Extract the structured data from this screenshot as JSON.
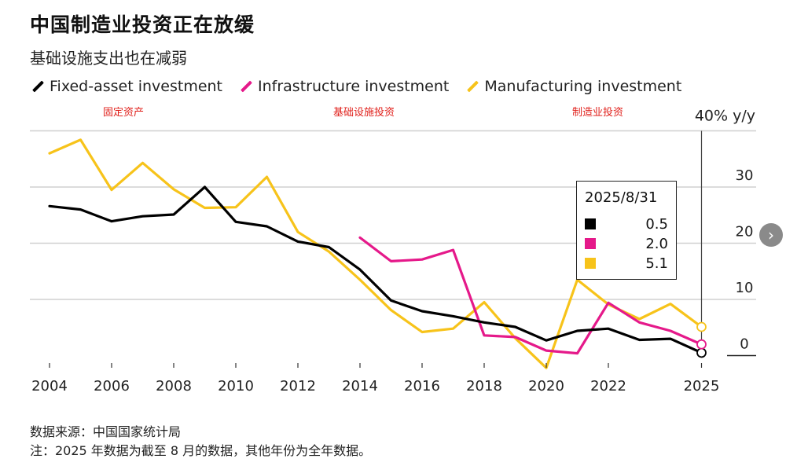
{
  "title": "中国制造业投资正在放缓",
  "subtitle": "基础设施支出也在减弱",
  "legend": [
    {
      "label": "Fixed-asset investment",
      "color": "#000000"
    },
    {
      "label": "Infrastructure investment",
      "color": "#e5198a"
    },
    {
      "label": "Manufacturing investment",
      "color": "#f7c31a"
    }
  ],
  "annotations": {
    "fixed": "固定资产",
    "infra": "基础设施投资",
    "manu": "制造业投资"
  },
  "y_unit_label": "40% y/y",
  "tooltip": {
    "date": "2025/8/31",
    "rows": [
      {
        "value": "0.5",
        "color": "#000000"
      },
      {
        "value": "2.0",
        "color": "#e5198a"
      },
      {
        "value": "5.1",
        "color": "#f7c31a"
      }
    ]
  },
  "footer": {
    "source": "数据来源：中国国家统计局",
    "note": "注：2025 年数据为截至 8 月的数据，其他年份为全年数据。"
  },
  "nav": {
    "next_icon": "›"
  },
  "chart_data": {
    "type": "line",
    "title": "中国制造业投资正在放缓",
    "subtitle": "基础设施支出也在减弱",
    "ylabel": "40% y/y",
    "ylim": [
      -2,
      40
    ],
    "y_ticks": [
      0,
      10,
      20,
      30
    ],
    "x_ticks": [
      "2004",
      "2006",
      "2008",
      "2010",
      "2012",
      "2014",
      "2016",
      "2018",
      "2020",
      "2022",
      "2025"
    ],
    "grid": true,
    "series": [
      {
        "name": "Fixed-asset investment",
        "color": "#000000",
        "x": [
          2004,
          2005,
          2006,
          2007,
          2008,
          2009,
          2010,
          2011,
          2012,
          2013,
          2014,
          2015,
          2016,
          2017,
          2018,
          2019,
          2020,
          2021,
          2022,
          2023,
          2024,
          2025
        ],
        "y": [
          26.6,
          26.0,
          23.9,
          24.8,
          25.1,
          30.0,
          23.8,
          23.0,
          20.3,
          19.3,
          15.3,
          9.8,
          7.9,
          7.0,
          5.9,
          5.1,
          2.7,
          4.4,
          4.8,
          2.8,
          3.0,
          0.5
        ]
      },
      {
        "name": "Infrastructure investment",
        "color": "#e5198a",
        "x": [
          2014,
          2015,
          2016,
          2017,
          2018,
          2019,
          2020,
          2021,
          2022,
          2023,
          2024,
          2025
        ],
        "y": [
          21.0,
          16.8,
          17.1,
          18.8,
          3.6,
          3.3,
          0.9,
          0.4,
          9.4,
          5.9,
          4.4,
          2.0
        ]
      },
      {
        "name": "Manufacturing investment",
        "color": "#f7c31a",
        "x": [
          2004,
          2005,
          2006,
          2007,
          2008,
          2009,
          2010,
          2011,
          2012,
          2013,
          2014,
          2015,
          2016,
          2017,
          2018,
          2019,
          2020,
          2021,
          2022,
          2023,
          2024,
          2025
        ],
        "y": [
          36.0,
          38.4,
          29.5,
          34.3,
          29.6,
          26.3,
          26.4,
          31.8,
          22.0,
          18.5,
          13.5,
          8.1,
          4.2,
          4.8,
          9.5,
          3.1,
          -2.2,
          13.5,
          9.1,
          6.5,
          9.2,
          5.1
        ]
      }
    ]
  }
}
